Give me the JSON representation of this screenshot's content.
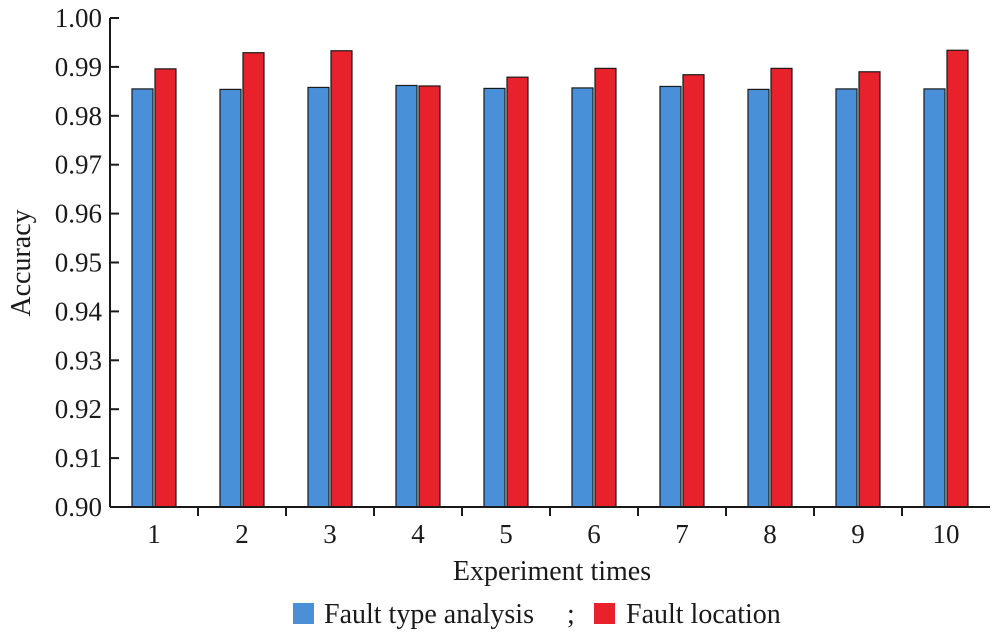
{
  "chart_data": {
    "type": "bar",
    "xlabel": "Experiment times",
    "ylabel": "Accuracy",
    "categories": [
      "1",
      "2",
      "3",
      "4",
      "5",
      "6",
      "7",
      "8",
      "9",
      "10"
    ],
    "ylim": [
      0.9,
      1.0
    ],
    "yticks": [
      "0.90",
      "0.91",
      "0.92",
      "0.93",
      "0.94",
      "0.95",
      "0.96",
      "0.97",
      "0.98",
      "0.99",
      "1.00"
    ],
    "grid": false,
    "legend_position": "bottom",
    "legend_separator": ";",
    "series": [
      {
        "name": "Fault type analysis",
        "color": "#4a90d9",
        "values": [
          0.9855,
          0.9854,
          0.9858,
          0.9862,
          0.9856,
          0.9857,
          0.986,
          0.9854,
          0.9855,
          0.9855
        ]
      },
      {
        "name": "Fault location",
        "color": "#e8212a",
        "values": [
          0.9896,
          0.9929,
          0.9933,
          0.9861,
          0.9879,
          0.9897,
          0.9884,
          0.9897,
          0.989,
          0.9934
        ]
      }
    ]
  }
}
